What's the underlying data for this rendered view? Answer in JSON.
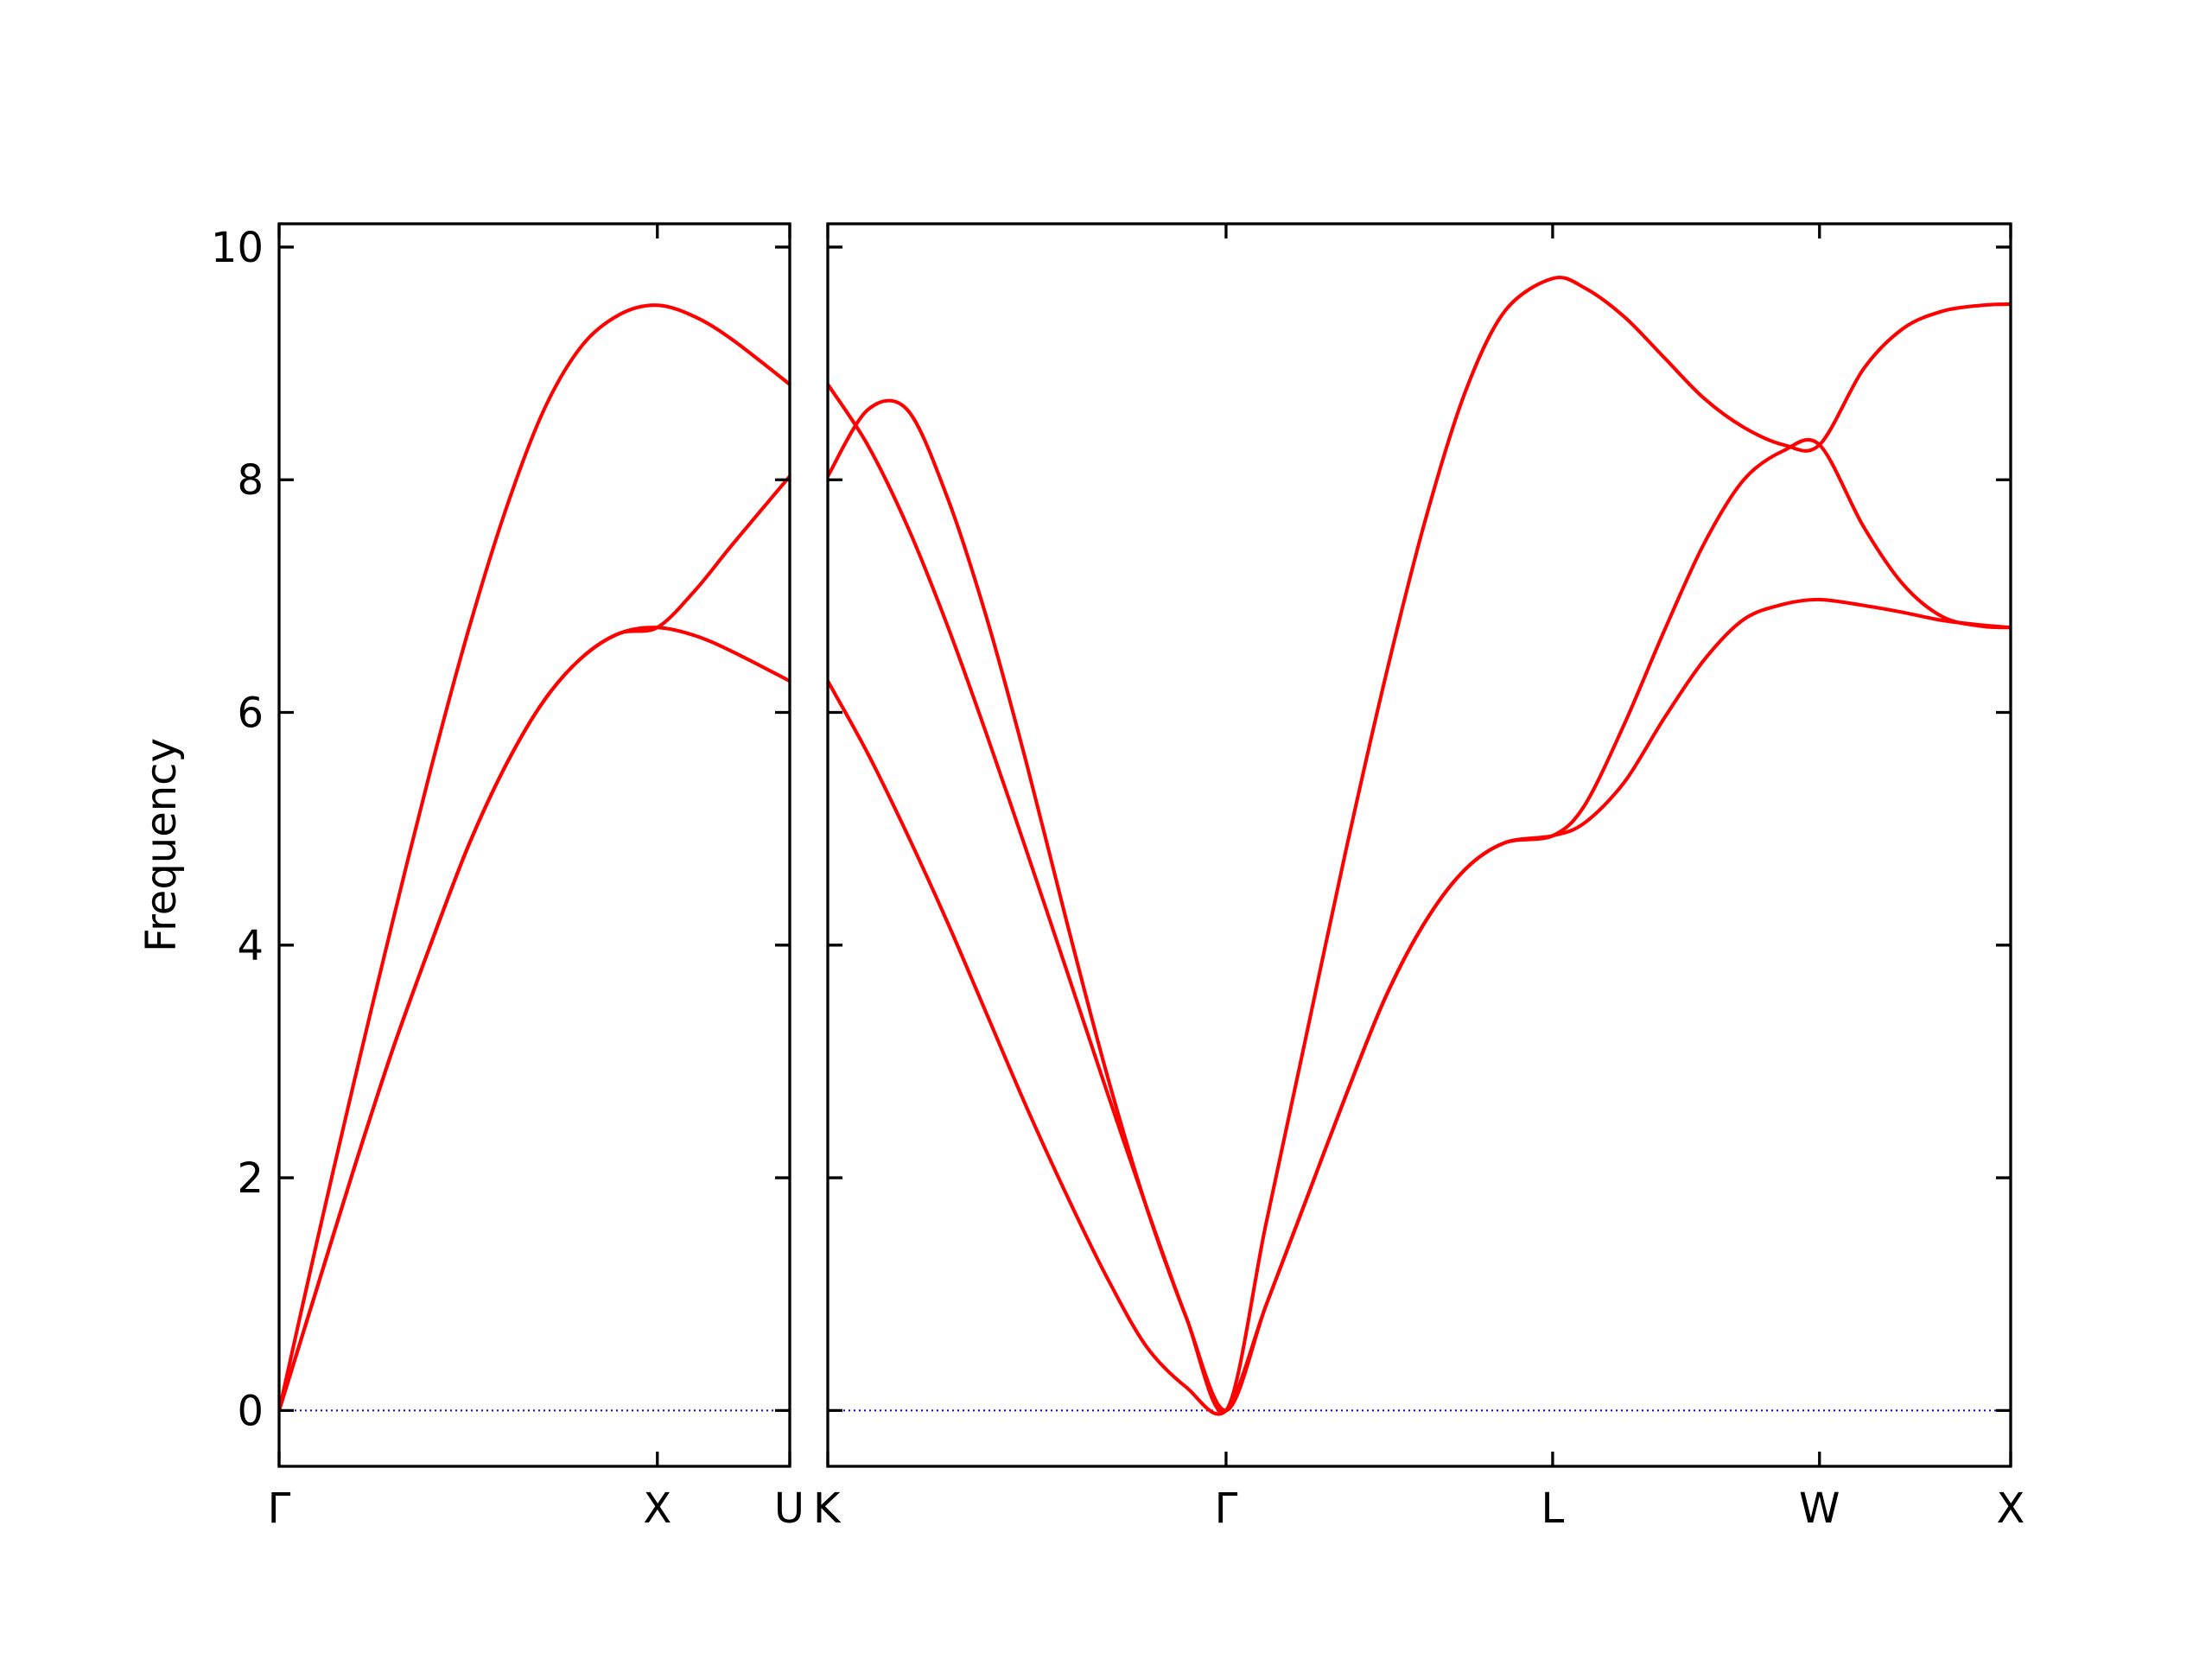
{
  "chart_data": {
    "type": "line",
    "title": "",
    "ylabel": "Frequency",
    "ylim": [
      -0.48,
      10.2
    ],
    "yticks": [
      0,
      2,
      4,
      6,
      8,
      10
    ],
    "grid": false,
    "legend": "none",
    "colors": {
      "bands": "#ff0000",
      "zero_line": "#0000ff",
      "axes": "#000000"
    },
    "panels": [
      {
        "id": "left",
        "xlim": [
          0,
          1.35
        ],
        "xticks": [
          {
            "pos": 0,
            "label": "Γ"
          },
          {
            "pos": 1.0,
            "label": "X"
          },
          {
            "pos": 1.35,
            "label": "U"
          }
        ],
        "series": [
          {
            "x": [
              0,
              0.1,
              0.2,
              0.3,
              0.4,
              0.5,
              0.6,
              0.7,
              0.8,
              0.9,
              1.0,
              1.1,
              1.2,
              1.35
            ],
            "values": [
              0,
              1.45,
              2.85,
              4.2,
              5.5,
              6.7,
              7.75,
              8.6,
              9.15,
              9.42,
              9.5,
              9.4,
              9.2,
              8.82
            ]
          },
          {
            "x": [
              0,
              0.1,
              0.2,
              0.3,
              0.4,
              0.5,
              0.6,
              0.7,
              0.8,
              0.9,
              1.0,
              1.1,
              1.2,
              1.35
            ],
            "values": [
              0,
              1.05,
              2.1,
              3.1,
              4.0,
              4.85,
              5.55,
              6.1,
              6.47,
              6.68,
              6.73,
              7.05,
              7.45,
              8.03
            ]
          },
          {
            "x": [
              0,
              0.1,
              0.2,
              0.3,
              0.4,
              0.5,
              0.6,
              0.7,
              0.8,
              0.9,
              1.0,
              1.1,
              1.2,
              1.35
            ],
            "values": [
              0,
              1.05,
              2.1,
              3.1,
              4.0,
              4.85,
              5.55,
              6.1,
              6.47,
              6.68,
              6.73,
              6.66,
              6.52,
              6.27
            ]
          }
        ]
      },
      {
        "id": "right",
        "xlim": [
          0,
          2.97
        ],
        "xticks": [
          {
            "pos": 0,
            "label": "K"
          },
          {
            "pos": 1.0,
            "label": "Γ"
          },
          {
            "pos": 1.82,
            "label": "L"
          },
          {
            "pos": 2.49,
            "label": "W"
          },
          {
            "pos": 2.97,
            "label": "X"
          }
        ],
        "series": [
          {
            "x": [
              0,
              0.1,
              0.2,
              0.3,
              0.4,
              0.5,
              0.6,
              0.7,
              0.8,
              0.9,
              1.0,
              1.1,
              1.2,
              1.3,
              1.4,
              1.5,
              1.6,
              1.7,
              1.82,
              1.9,
              2.0,
              2.1,
              2.2,
              2.3,
              2.4,
              2.49,
              2.6,
              2.7,
              2.8,
              2.9,
              2.97
            ],
            "values": [
              8.82,
              8.3,
              7.6,
              6.75,
              5.8,
              4.8,
              3.78,
              2.75,
              1.75,
              0.8,
              0,
              1.6,
              3.2,
              4.8,
              6.3,
              7.65,
              8.75,
              9.45,
              9.73,
              9.65,
              9.4,
              9.05,
              8.7,
              8.45,
              8.3,
              8.3,
              8.95,
              9.3,
              9.45,
              9.5,
              9.51
            ]
          },
          {
            "x": [
              0,
              0.1,
              0.2,
              0.3,
              0.4,
              0.5,
              0.6,
              0.7,
              0.8,
              0.9,
              1.0,
              1.1,
              1.2,
              1.3,
              1.4,
              1.5,
              1.6,
              1.7,
              1.82,
              1.9,
              2.0,
              2.1,
              2.2,
              2.3,
              2.4,
              2.49,
              2.6,
              2.7,
              2.8,
              2.9,
              2.97
            ],
            "values": [
              8.03,
              8.6,
              8.6,
              7.85,
              6.8,
              5.55,
              4.2,
              2.9,
              1.75,
              0.8,
              0,
              0.9,
              1.8,
              2.7,
              3.55,
              4.2,
              4.65,
              4.88,
              4.94,
              5.2,
              5.9,
              6.7,
              7.45,
              8.0,
              8.25,
              8.3,
              7.6,
              7.1,
              6.82,
              6.74,
              6.73
            ]
          },
          {
            "x": [
              0,
              0.1,
              0.2,
              0.3,
              0.4,
              0.5,
              0.6,
              0.7,
              0.8,
              0.9,
              1.0,
              1.1,
              1.2,
              1.3,
              1.4,
              1.5,
              1.6,
              1.7,
              1.82,
              1.9,
              2.0,
              2.1,
              2.2,
              2.3,
              2.4,
              2.49,
              2.6,
              2.7,
              2.8,
              2.9,
              2.97
            ],
            "values": [
              6.27,
              5.65,
              4.95,
              4.2,
              3.4,
              2.6,
              1.85,
              1.15,
              0.55,
              0.2,
              0,
              0.9,
              1.8,
              2.7,
              3.55,
              4.2,
              4.65,
              4.88,
              4.94,
              5.05,
              5.4,
              5.95,
              6.45,
              6.8,
              6.93,
              6.97,
              6.92,
              6.86,
              6.79,
              6.75,
              6.73
            ]
          }
        ]
      }
    ]
  }
}
